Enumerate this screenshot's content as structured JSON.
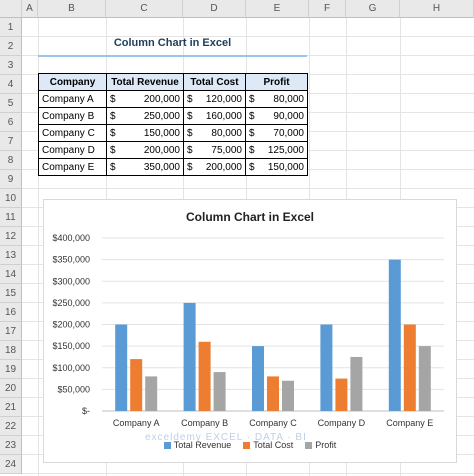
{
  "sheet": {
    "columns": [
      "A",
      "B",
      "C",
      "D",
      "E",
      "F",
      "G",
      "H"
    ],
    "rows": [
      "1",
      "2",
      "3",
      "4",
      "5",
      "6",
      "7",
      "8",
      "9",
      "10",
      "11",
      "12",
      "13",
      "14",
      "15",
      "16",
      "17",
      "18",
      "19",
      "20",
      "21",
      "22",
      "23",
      "24"
    ]
  },
  "title": "Column Chart in Excel",
  "table": {
    "headers": [
      "Company",
      "Total Revenue",
      "Total Cost",
      "Profit"
    ],
    "currency": "$",
    "rows": [
      {
        "company": "Company A",
        "revenue": "200,000",
        "cost": "120,000",
        "profit": "80,000"
      },
      {
        "company": "Company B",
        "revenue": "250,000",
        "cost": "160,000",
        "profit": "90,000"
      },
      {
        "company": "Company C",
        "revenue": "150,000",
        "cost": "80,000",
        "profit": "70,000"
      },
      {
        "company": "Company D",
        "revenue": "200,000",
        "cost": "75,000",
        "profit": "125,000"
      },
      {
        "company": "Company E",
        "revenue": "350,000",
        "cost": "200,000",
        "profit": "150,000"
      }
    ]
  },
  "chart_data": {
    "type": "bar",
    "title": "Column Chart in Excel",
    "categories": [
      "Company A",
      "Company B",
      "Company C",
      "Company D",
      "Company E"
    ],
    "series": [
      {
        "name": "Total Revenue",
        "values": [
          200000,
          250000,
          150000,
          200000,
          350000
        ],
        "color": "#5b9bd5"
      },
      {
        "name": "Total Cost",
        "values": [
          120000,
          160000,
          80000,
          75000,
          200000
        ],
        "color": "#ed7d31"
      },
      {
        "name": "Profit",
        "values": [
          80000,
          90000,
          70000,
          125000,
          150000
        ],
        "color": "#a5a5a5"
      }
    ],
    "ylim": [
      0,
      400000
    ],
    "yticks": [
      "$-",
      "$50,000",
      "$100,000",
      "$150,000",
      "$200,000",
      "$250,000",
      "$300,000",
      "$350,000",
      "$400,000"
    ],
    "grid": true,
    "legend": "bottom"
  },
  "watermark": "exceldemy EXCEL · DATA · BI"
}
